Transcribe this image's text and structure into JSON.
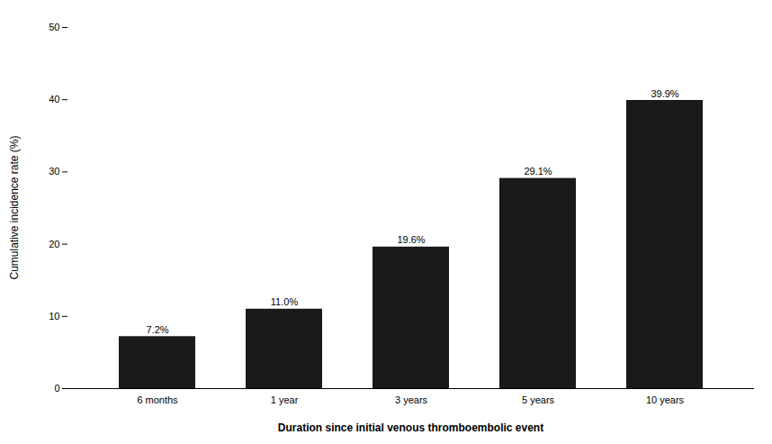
{
  "chart_data": {
    "type": "bar",
    "categories": [
      "6 months",
      "1 year",
      "3 years",
      "5 years",
      "10 years"
    ],
    "values": [
      7.2,
      11.0,
      19.6,
      29.1,
      39.9
    ],
    "value_labels": [
      "7.2%",
      "11.0%",
      "19.6%",
      "29.1%",
      "39.9%"
    ],
    "data_labels": true,
    "color": "#1a1a1a",
    "xlabel": "Duration since initial venous thromboembolic event",
    "ylabel": "Cumulative incidence rate (%)",
    "ylim": [
      0,
      50
    ],
    "yticks": [
      0,
      10,
      20,
      30,
      40,
      50
    ],
    "grid": false
  }
}
